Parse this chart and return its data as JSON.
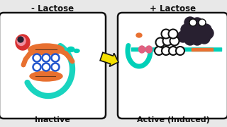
{
  "background_color": "#e8e8e8",
  "panel_bg": "#ffffff",
  "title_left": "- Lactose",
  "title_right": "+ Lactose",
  "label_left": "Inactive",
  "label_right": "Active (Induced)",
  "arrow_color": "#f5e000",
  "arrow_edge_color": "#222222",
  "colors": {
    "teal": "#00d0b8",
    "teal_dark": "#00b8a0",
    "orange": "#e87030",
    "red": "#d83030",
    "pink": "#e06080",
    "pink_light": "#f090a0",
    "blue": "#2255cc",
    "dark": "#111111",
    "gray": "#555555",
    "white": "#ffffff",
    "black": "#111111",
    "dark_purple": "#282030"
  }
}
